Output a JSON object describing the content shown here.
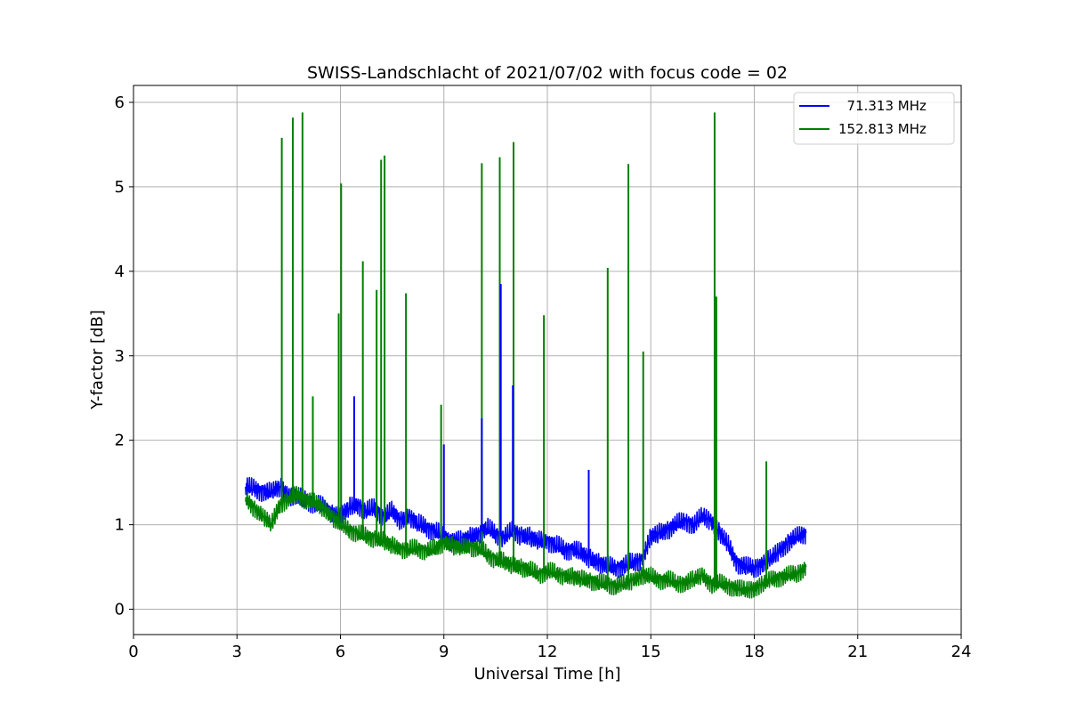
{
  "chart_data": {
    "type": "line",
    "title": "SWISS-Landschlacht of 2021/07/02 with focus code = 02",
    "xlabel": "Universal Time [h]",
    "ylabel": "Y-factor [dB]",
    "xlim": [
      0,
      24
    ],
    "ylim": [
      -0.3,
      6.2
    ],
    "x_ticks": [
      0,
      3,
      6,
      9,
      12,
      15,
      18,
      21,
      24
    ],
    "y_ticks": [
      0,
      1,
      2,
      3,
      4,
      5,
      6
    ],
    "grid": true,
    "legend_position": "top-right",
    "series": [
      {
        "name": "  71.313 MHz",
        "color": "#0000ff",
        "x": [
          3.25,
          3.5,
          3.75,
          4.0,
          4.25,
          4.5,
          4.75,
          5.0,
          5.25,
          5.5,
          5.75,
          6.0,
          6.25,
          6.5,
          6.75,
          7.0,
          7.25,
          7.5,
          7.75,
          8.0,
          8.25,
          8.5,
          8.75,
          9.0,
          9.25,
          9.5,
          9.75,
          10.0,
          10.25,
          10.5,
          10.75,
          11.0,
          11.25,
          11.5,
          11.75,
          12.0,
          12.25,
          12.5,
          12.75,
          13.0,
          13.25,
          13.5,
          13.75,
          14.0,
          14.25,
          14.5,
          14.75,
          15.0,
          15.25,
          15.5,
          15.75,
          16.0,
          16.25,
          16.5,
          16.75,
          17.0,
          17.25,
          17.5,
          17.75,
          18.0,
          18.25,
          18.5,
          18.75,
          19.0,
          19.25,
          19.5
        ],
        "y": [
          1.45,
          1.42,
          1.4,
          1.38,
          1.45,
          1.35,
          1.32,
          1.3,
          1.25,
          1.2,
          1.15,
          1.1,
          1.2,
          1.25,
          1.15,
          1.2,
          1.1,
          1.15,
          1.05,
          1.1,
          1.0,
          0.98,
          0.92,
          0.85,
          0.82,
          0.8,
          0.85,
          0.9,
          0.95,
          0.9,
          0.85,
          0.92,
          0.88,
          0.85,
          0.8,
          0.82,
          0.75,
          0.7,
          0.72,
          0.65,
          0.6,
          0.55,
          0.5,
          0.5,
          0.52,
          0.55,
          0.6,
          0.85,
          0.9,
          0.95,
          1.0,
          1.05,
          1.0,
          1.1,
          1.05,
          0.9,
          0.75,
          0.55,
          0.5,
          0.48,
          0.55,
          0.6,
          0.7,
          0.8,
          0.85,
          0.9
        ]
      },
      {
        "name": "152.813 MHz",
        "color": "#008000",
        "x": [
          3.25,
          3.5,
          3.75,
          4.0,
          4.25,
          4.5,
          4.75,
          5.0,
          5.25,
          5.5,
          5.75,
          6.0,
          6.25,
          6.5,
          6.75,
          7.0,
          7.25,
          7.5,
          7.75,
          8.0,
          8.25,
          8.5,
          8.75,
          9.0,
          9.25,
          9.5,
          9.75,
          10.0,
          10.25,
          10.5,
          10.75,
          11.0,
          11.25,
          11.5,
          11.75,
          12.0,
          12.25,
          12.5,
          12.75,
          13.0,
          13.25,
          13.5,
          13.75,
          14.0,
          14.25,
          14.5,
          14.75,
          15.0,
          15.25,
          15.5,
          15.75,
          16.0,
          16.25,
          16.5,
          16.75,
          17.0,
          17.25,
          17.5,
          17.75,
          18.0,
          18.25,
          18.5,
          18.75,
          19.0,
          19.25,
          19.5
        ],
        "y": [
          1.3,
          1.2,
          1.1,
          1.0,
          1.25,
          1.3,
          1.35,
          1.3,
          1.25,
          1.2,
          1.1,
          1.0,
          0.95,
          0.9,
          0.85,
          0.85,
          0.8,
          0.75,
          0.72,
          0.7,
          0.72,
          0.7,
          0.7,
          0.8,
          0.75,
          0.72,
          0.75,
          0.72,
          0.65,
          0.6,
          0.55,
          0.52,
          0.5,
          0.45,
          0.42,
          0.45,
          0.42,
          0.4,
          0.38,
          0.35,
          0.35,
          0.3,
          0.3,
          0.28,
          0.3,
          0.35,
          0.4,
          0.38,
          0.35,
          0.35,
          0.3,
          0.32,
          0.35,
          0.4,
          0.3,
          0.3,
          0.28,
          0.25,
          0.22,
          0.25,
          0.3,
          0.35,
          0.38,
          0.4,
          0.42,
          0.5
        ]
      }
    ],
    "spikes": [
      {
        "series": 1,
        "x": 4.3,
        "y": 5.58
      },
      {
        "series": 1,
        "x": 4.62,
        "y": 5.82
      },
      {
        "series": 1,
        "x": 4.9,
        "y": 5.88
      },
      {
        "series": 1,
        "x": 5.2,
        "y": 2.52
      },
      {
        "series": 1,
        "x": 5.95,
        "y": 3.5
      },
      {
        "series": 1,
        "x": 6.02,
        "y": 5.04
      },
      {
        "series": 1,
        "x": 6.65,
        "y": 4.12
      },
      {
        "series": 1,
        "x": 7.05,
        "y": 3.78
      },
      {
        "series": 1,
        "x": 7.18,
        "y": 5.32
      },
      {
        "series": 1,
        "x": 7.28,
        "y": 5.37
      },
      {
        "series": 1,
        "x": 7.9,
        "y": 3.74
      },
      {
        "series": 1,
        "x": 8.92,
        "y": 2.42
      },
      {
        "series": 1,
        "x": 10.1,
        "y": 5.28
      },
      {
        "series": 1,
        "x": 10.62,
        "y": 5.35
      },
      {
        "series": 1,
        "x": 11.02,
        "y": 5.53
      },
      {
        "series": 1,
        "x": 11.9,
        "y": 3.48
      },
      {
        "series": 1,
        "x": 13.75,
        "y": 4.04
      },
      {
        "series": 1,
        "x": 14.35,
        "y": 5.27
      },
      {
        "series": 1,
        "x": 14.78,
        "y": 3.05
      },
      {
        "series": 1,
        "x": 16.85,
        "y": 5.88
      },
      {
        "series": 1,
        "x": 16.9,
        "y": 3.7
      },
      {
        "series": 1,
        "x": 18.35,
        "y": 1.75
      },
      {
        "series": 0,
        "x": 6.4,
        "y": 2.52
      },
      {
        "series": 0,
        "x": 9.0,
        "y": 1.95
      },
      {
        "series": 0,
        "x": 10.1,
        "y": 2.26
      },
      {
        "series": 0,
        "x": 10.65,
        "y": 3.85
      },
      {
        "series": 0,
        "x": 11.0,
        "y": 2.65
      },
      {
        "series": 0,
        "x": 13.2,
        "y": 1.65
      }
    ]
  }
}
